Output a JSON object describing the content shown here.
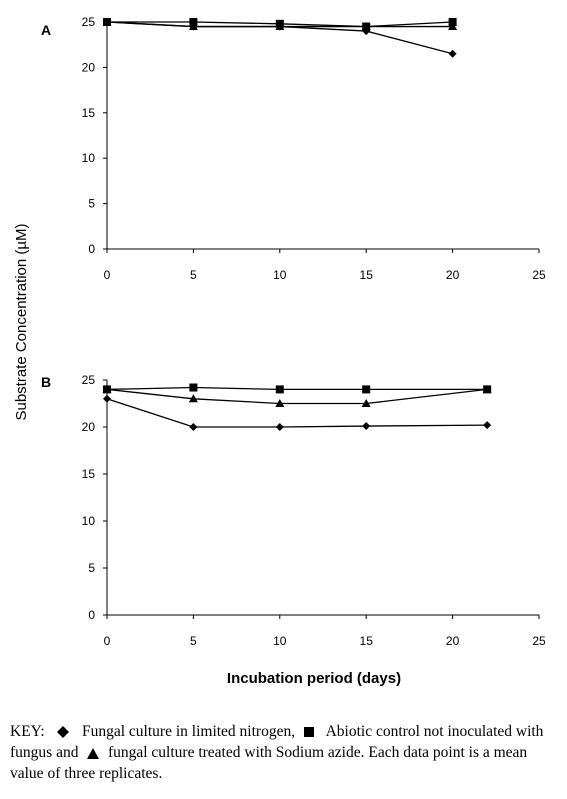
{
  "chart_data": [
    {
      "type": "line",
      "panel_label": "A",
      "xlabel": "",
      "ylabel": "Substrate Concentration (µM)",
      "xlim": [
        0,
        25
      ],
      "ylim": [
        0,
        25
      ],
      "xticks": [
        0,
        5,
        10,
        15,
        20,
        25
      ],
      "yticks": [
        0,
        5,
        10,
        15,
        20,
        25
      ],
      "grid": false,
      "series": [
        {
          "marker": "diamond",
          "x": [
            0,
            5,
            10,
            15,
            20
          ],
          "values": [
            25.0,
            24.5,
            24.5,
            24.0,
            21.5
          ]
        },
        {
          "marker": "square",
          "x": [
            0,
            5,
            10,
            15,
            20
          ],
          "values": [
            25.0,
            25.0,
            24.8,
            24.5,
            25.0
          ]
        },
        {
          "marker": "triangle",
          "x": [
            0,
            5,
            10,
            15,
            20
          ],
          "values": [
            25.0,
            24.5,
            24.5,
            24.5,
            24.5
          ]
        }
      ]
    },
    {
      "type": "line",
      "panel_label": "B",
      "xlabel": "Incubation period (days)",
      "ylabel": "Substrate Concentration (µM)",
      "xlim": [
        0,
        25
      ],
      "ylim": [
        0,
        25
      ],
      "xticks": [
        0,
        5,
        10,
        15,
        20,
        25
      ],
      "yticks": [
        0,
        5,
        10,
        15,
        20,
        25
      ],
      "grid": false,
      "series": [
        {
          "marker": "diamond",
          "x": [
            0,
            5,
            10,
            15,
            22
          ],
          "values": [
            23.0,
            20.0,
            20.0,
            20.1,
            20.2
          ]
        },
        {
          "marker": "square",
          "x": [
            0,
            5,
            10,
            15,
            22
          ],
          "values": [
            24.0,
            24.2,
            24.0,
            24.0,
            24.0
          ]
        },
        {
          "marker": "triangle",
          "x": [
            0,
            5,
            10,
            15,
            22
          ],
          "values": [
            24.0,
            23.0,
            22.5,
            22.5,
            24.0
          ]
        }
      ]
    }
  ],
  "key": {
    "lead": "KEY:  ",
    "item1": "  Fungal culture in limited nitrogen, ",
    "item2": "  Abiotic control not inoculated with fungus and ",
    "item3": " fungal culture treated with Sodium azide. Each data point is a mean value of three replicates."
  }
}
